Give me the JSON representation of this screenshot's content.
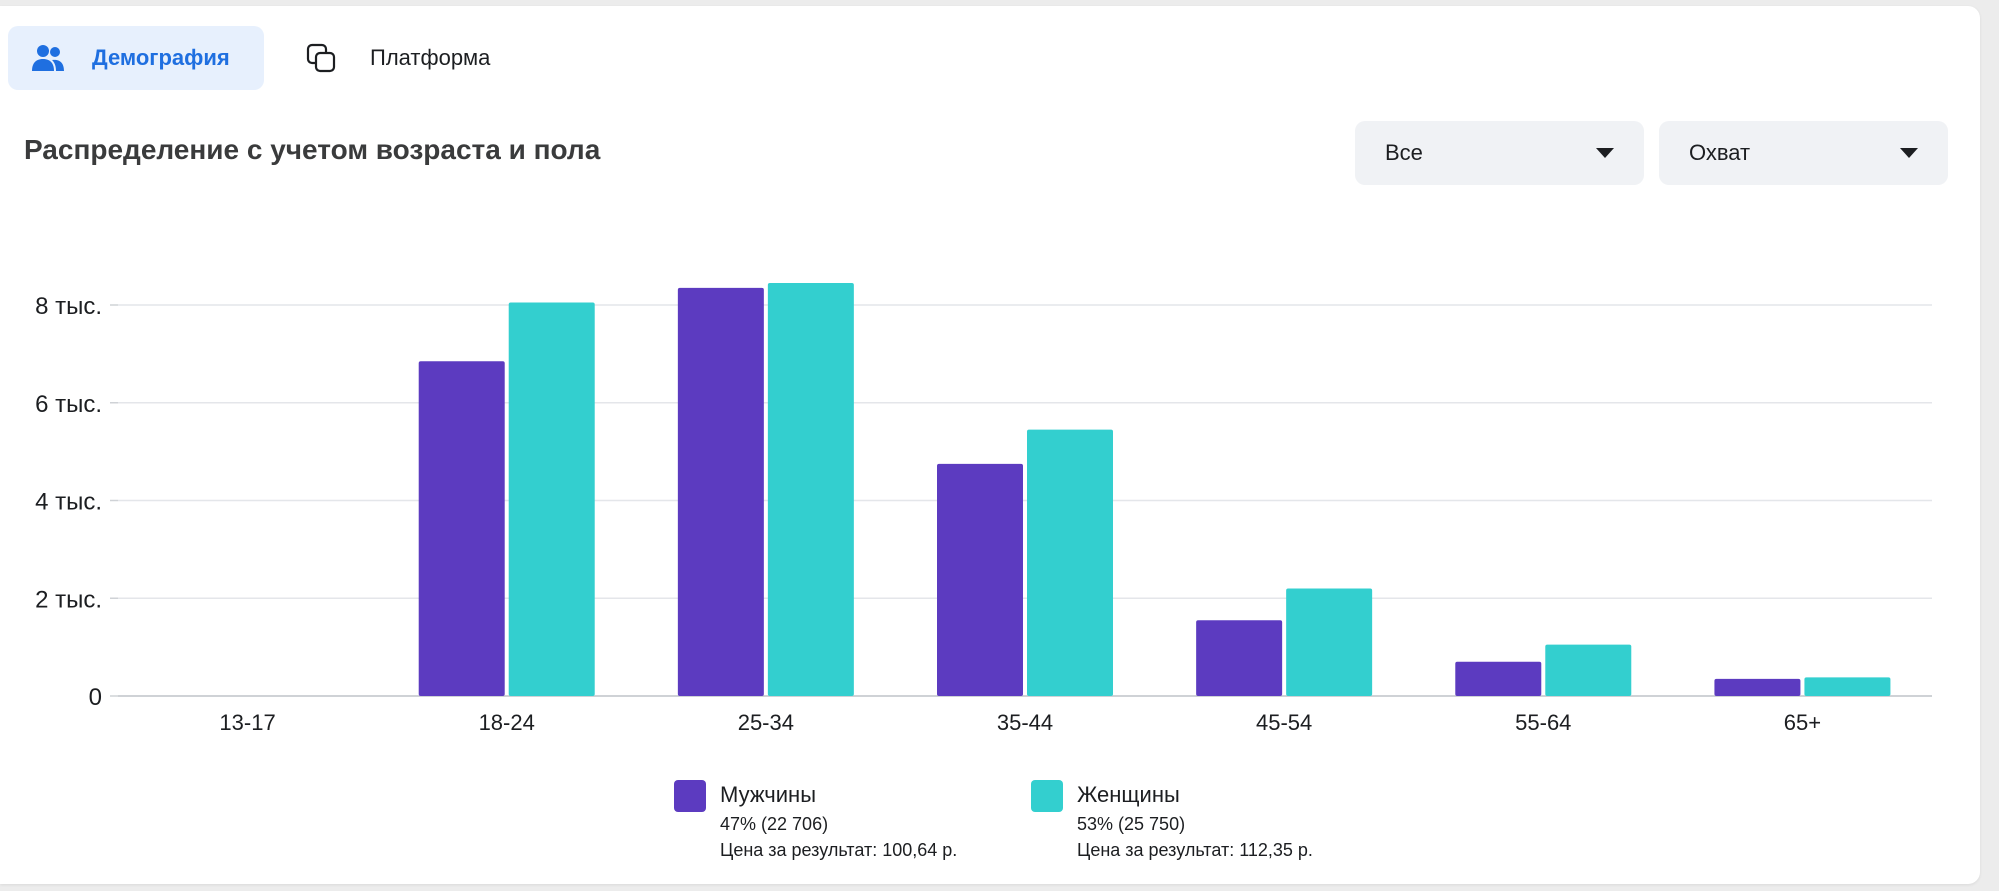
{
  "tabs": [
    {
      "label": "Демография",
      "icon": "people-icon",
      "active": true
    },
    {
      "label": "Платформа",
      "icon": "platform-icon",
      "active": false
    }
  ],
  "filters": {
    "audience": "Все",
    "metric": "Охват"
  },
  "colors": {
    "male": "#5c3bc0",
    "female": "#33cfcf",
    "accent": "#1f6fe0"
  },
  "legend": [
    {
      "name": "Мужчины",
      "share": "47% (22 706)",
      "cost": "Цена за результат: 100,64 р."
    },
    {
      "name": "Женщины",
      "share": "53% (25 750)",
      "cost": "Цена за результат: 112,35 р."
    }
  ],
  "chart_data": {
    "type": "bar",
    "title": "Распределение с учетом возраста и пола",
    "categories": [
      "13-17",
      "18-24",
      "25-34",
      "35-44",
      "45-54",
      "55-64",
      "65+"
    ],
    "series": [
      {
        "name": "Мужчины",
        "values": [
          0,
          6850,
          8350,
          4750,
          1550,
          700,
          350
        ]
      },
      {
        "name": "Женщины",
        "values": [
          0,
          8050,
          8450,
          5450,
          2200,
          1050,
          380
        ]
      }
    ],
    "yticks": [
      0,
      2000,
      4000,
      6000,
      8000
    ],
    "ytick_labels": [
      "0",
      "2 тыс.",
      "4 тыс.",
      "6 тыс.",
      "8 тыс."
    ],
    "ylim": [
      0,
      8000
    ],
    "grid": true,
    "legend_position": "bottom"
  }
}
